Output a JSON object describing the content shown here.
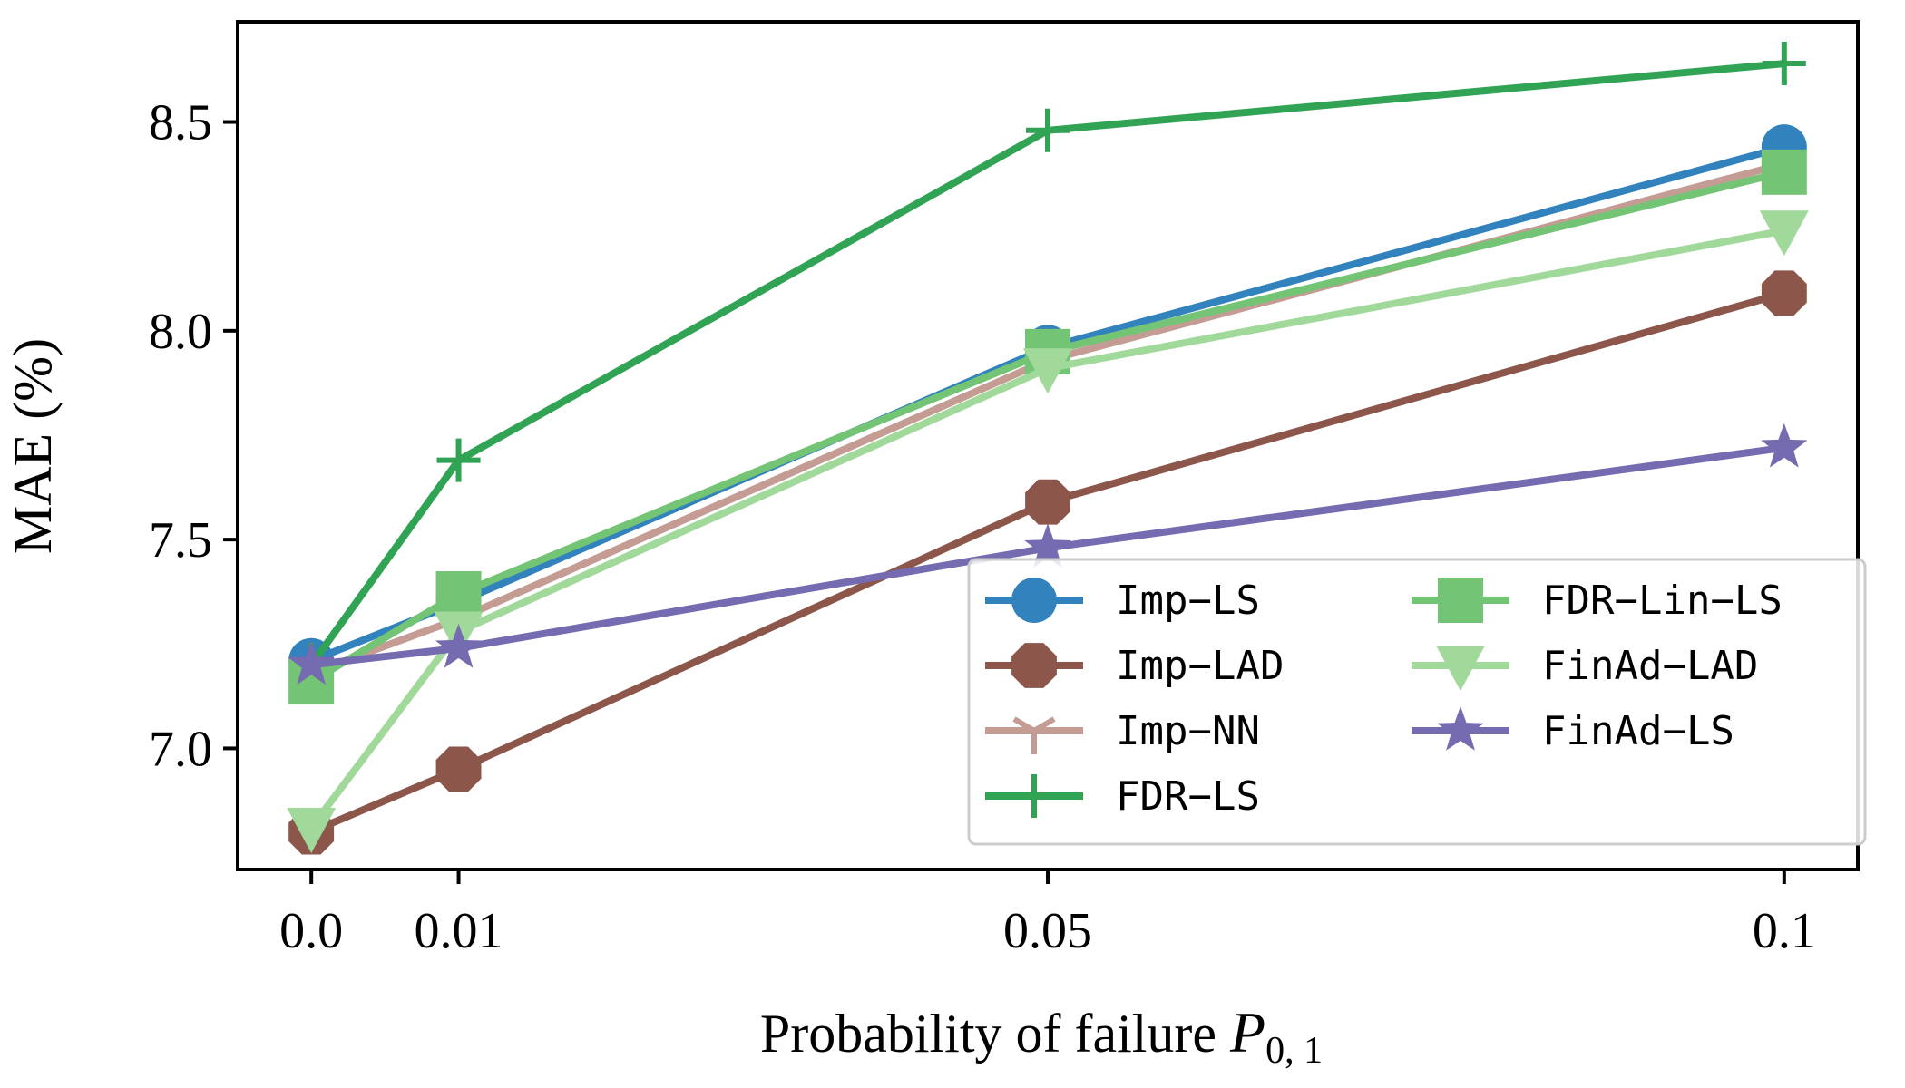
{
  "chart_data": {
    "type": "line",
    "xlabel_text": "Probability of failure ",
    "xlabel_var": "P",
    "xlabel_sub": "0, 1",
    "ylabel": "MAE (%)",
    "x": [
      0.0,
      0.01,
      0.05,
      0.1
    ],
    "xtick_labels": [
      "0.0",
      "0.01",
      "0.05",
      "0.1"
    ],
    "yticks": [
      7.0,
      7.5,
      8.0,
      8.5
    ],
    "ytick_labels": [
      "7.0",
      "7.5",
      "8.0",
      "8.5"
    ],
    "xlim": [
      -0.005,
      0.105
    ],
    "ylim": [
      6.71,
      8.74
    ],
    "grid": false,
    "legend_position": "lower-right",
    "series": [
      {
        "name": "Imp−LS",
        "marker": "circle",
        "color": "#3182bd",
        "values": [
          7.21,
          7.35,
          7.96,
          8.44
        ]
      },
      {
        "name": "Imp−LAD",
        "marker": "octagon",
        "color": "#8c564b",
        "values": [
          6.8,
          6.95,
          7.59,
          8.09
        ]
      },
      {
        "name": "Imp−NN",
        "marker": "tri-y",
        "color": "#c49c94",
        "values": [
          7.18,
          7.31,
          7.93,
          8.4
        ]
      },
      {
        "name": "FDR−LS",
        "marker": "plus",
        "color": "#31a354",
        "values": [
          7.2,
          7.69,
          8.48,
          8.64
        ]
      },
      {
        "name": "FDR−Lin−LS",
        "marker": "square",
        "color": "#74c476",
        "values": [
          7.16,
          7.37,
          7.95,
          8.38
        ]
      },
      {
        "name": "FinAd−LAD",
        "marker": "triangle-down",
        "color": "#a1d99b",
        "values": [
          6.81,
          7.28,
          7.91,
          8.24
        ]
      },
      {
        "name": "FinAd−LS",
        "marker": "star",
        "color": "#756bb1",
        "values": [
          7.2,
          7.24,
          7.48,
          7.72
        ]
      }
    ]
  }
}
